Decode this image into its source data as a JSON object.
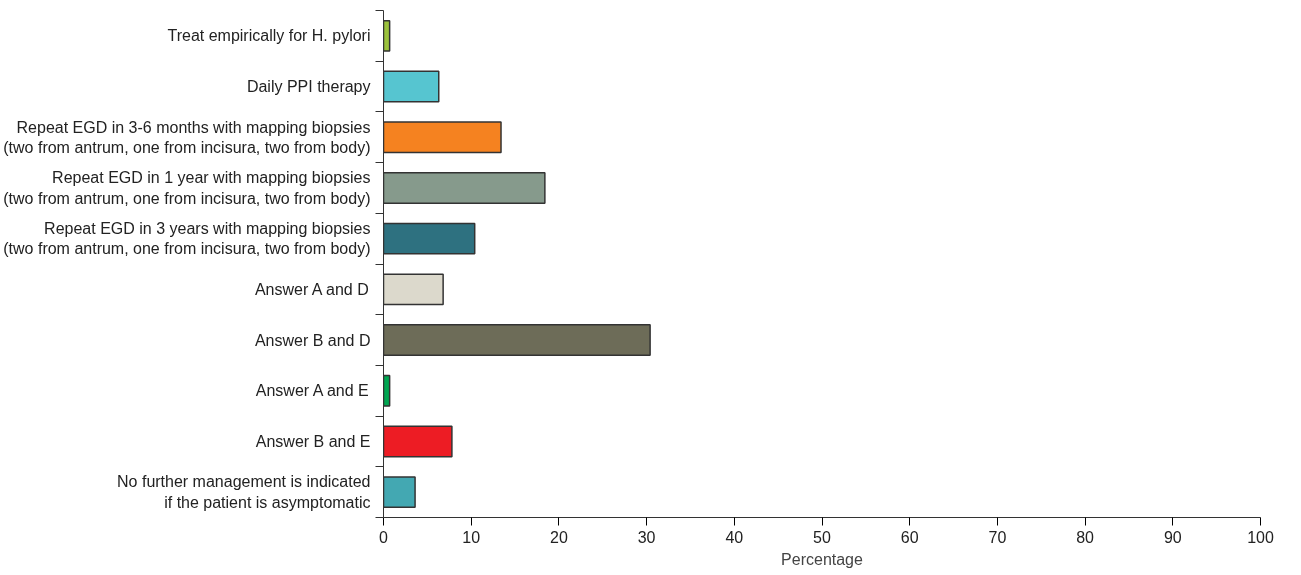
{
  "chart_data": {
    "type": "bar",
    "orientation": "horizontal",
    "xlabel": "Percentage",
    "categories": [
      "Treat empirically for H. pylori",
      "Daily PPI therapy",
      "Repeat EGD in 3-6 months with mapping biopsies\n(two from antrum, one from incisura, two from body)",
      "Repeat EGD in 1 year with mapping biopsies\n(two from antrum, one from incisura, two from body)",
      "Repeat EGD in 3 years with mapping biopsies\n(two from antrum, one from incisura, two from body)",
      "Answer A and D",
      "Answer B and D",
      "Answer A and E",
      "Answer B and E",
      "No further management is indicated\nif the patient is asymptomatic"
    ],
    "values": [
      0.7,
      6.3,
      13.4,
      18.4,
      10.4,
      6.8,
      30.4,
      0.7,
      7.8,
      3.6
    ],
    "colors": [
      "#9bc23c",
      "#56c5d0",
      "#f58220",
      "#869a8c",
      "#2e7180",
      "#dcd9cc",
      "#6d6c58",
      "#00a651",
      "#ed1c24",
      "#43a8b2"
    ],
    "xlim": [
      0,
      100
    ],
    "xticks": [
      0,
      10,
      20,
      30,
      40,
      50,
      60,
      70,
      80,
      90,
      100
    ],
    "grid": false
  }
}
